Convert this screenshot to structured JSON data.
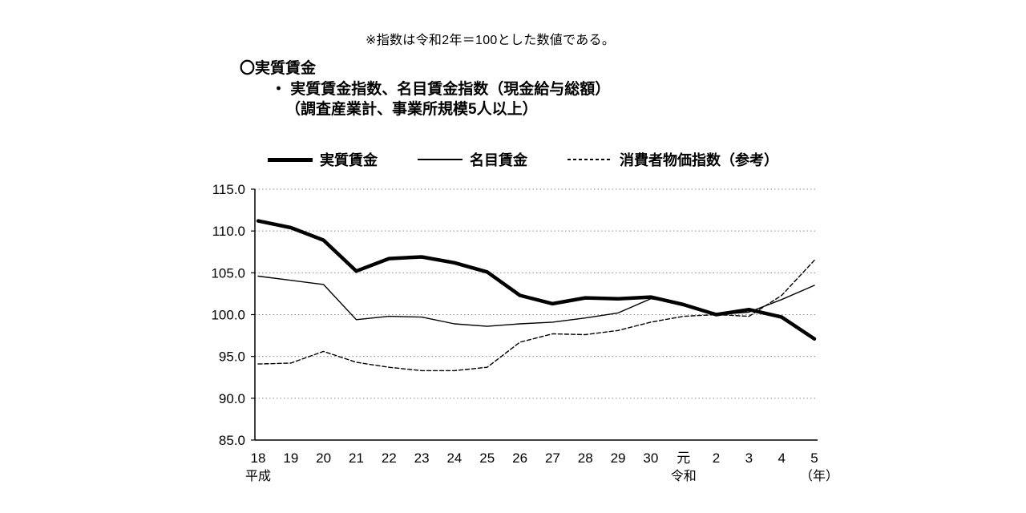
{
  "note": "※指数は令和2年＝100とした数値である。",
  "title": {
    "heading": "〇実質賃金",
    "sub1": "・ 実質賃金指数、名目賃金指数（現金給与総額）",
    "sub2": "（調査産業計、事業所規模5人以上）"
  },
  "legend": {
    "items": [
      {
        "label": "実質賃金",
        "style": "thick-solid"
      },
      {
        "label": "名目賃金",
        "style": "thin-solid"
      },
      {
        "label": "消費者物価指数（参考）",
        "style": "dashed"
      }
    ]
  },
  "colors": {
    "line": "#000000",
    "grid": "#888888",
    "background": "#ffffff"
  },
  "chart_data": {
    "type": "line",
    "title": "実質賃金指数、名目賃金指数（現金給与総額）（調査産業計、事業所規模5人以上）",
    "categories": [
      "18",
      "19",
      "20",
      "21",
      "22",
      "23",
      "24",
      "25",
      "26",
      "27",
      "28",
      "29",
      "30",
      "元",
      "2",
      "3",
      "4",
      "5"
    ],
    "era_labels": [
      {
        "index": 0,
        "label": "平成"
      },
      {
        "index": 13,
        "label": "令和"
      }
    ],
    "x_unit_label": "（年）",
    "ylim": [
      85.0,
      115.0
    ],
    "y_ticks": [
      115.0,
      110.0,
      105.0,
      100.0,
      95.0,
      90.0,
      85.0
    ],
    "grid": true,
    "legend_position": "top",
    "series": [
      {
        "key": "real-wage",
        "name": "実質賃金",
        "style": "thick-solid",
        "values": [
          111.2,
          110.4,
          108.9,
          105.2,
          106.7,
          106.9,
          106.2,
          105.1,
          102.3,
          101.3,
          102.0,
          101.9,
          102.1,
          101.2,
          100.0,
          100.6,
          99.7,
          97.1
        ]
      },
      {
        "key": "nominal-wage",
        "name": "名目賃金",
        "style": "thin-solid",
        "values": [
          104.6,
          104.1,
          103.6,
          99.4,
          99.8,
          99.7,
          98.9,
          98.6,
          98.9,
          99.1,
          99.6,
          100.2,
          101.9,
          101.3,
          100.0,
          100.3,
          101.8,
          103.5
        ]
      },
      {
        "key": "cpi",
        "name": "消費者物価指数（参考）",
        "style": "dashed",
        "values": [
          94.1,
          94.2,
          95.6,
          94.3,
          93.7,
          93.3,
          93.3,
          93.7,
          96.7,
          97.7,
          97.6,
          98.1,
          99.1,
          99.8,
          100.0,
          99.8,
          102.3,
          106.5
        ]
      }
    ]
  }
}
